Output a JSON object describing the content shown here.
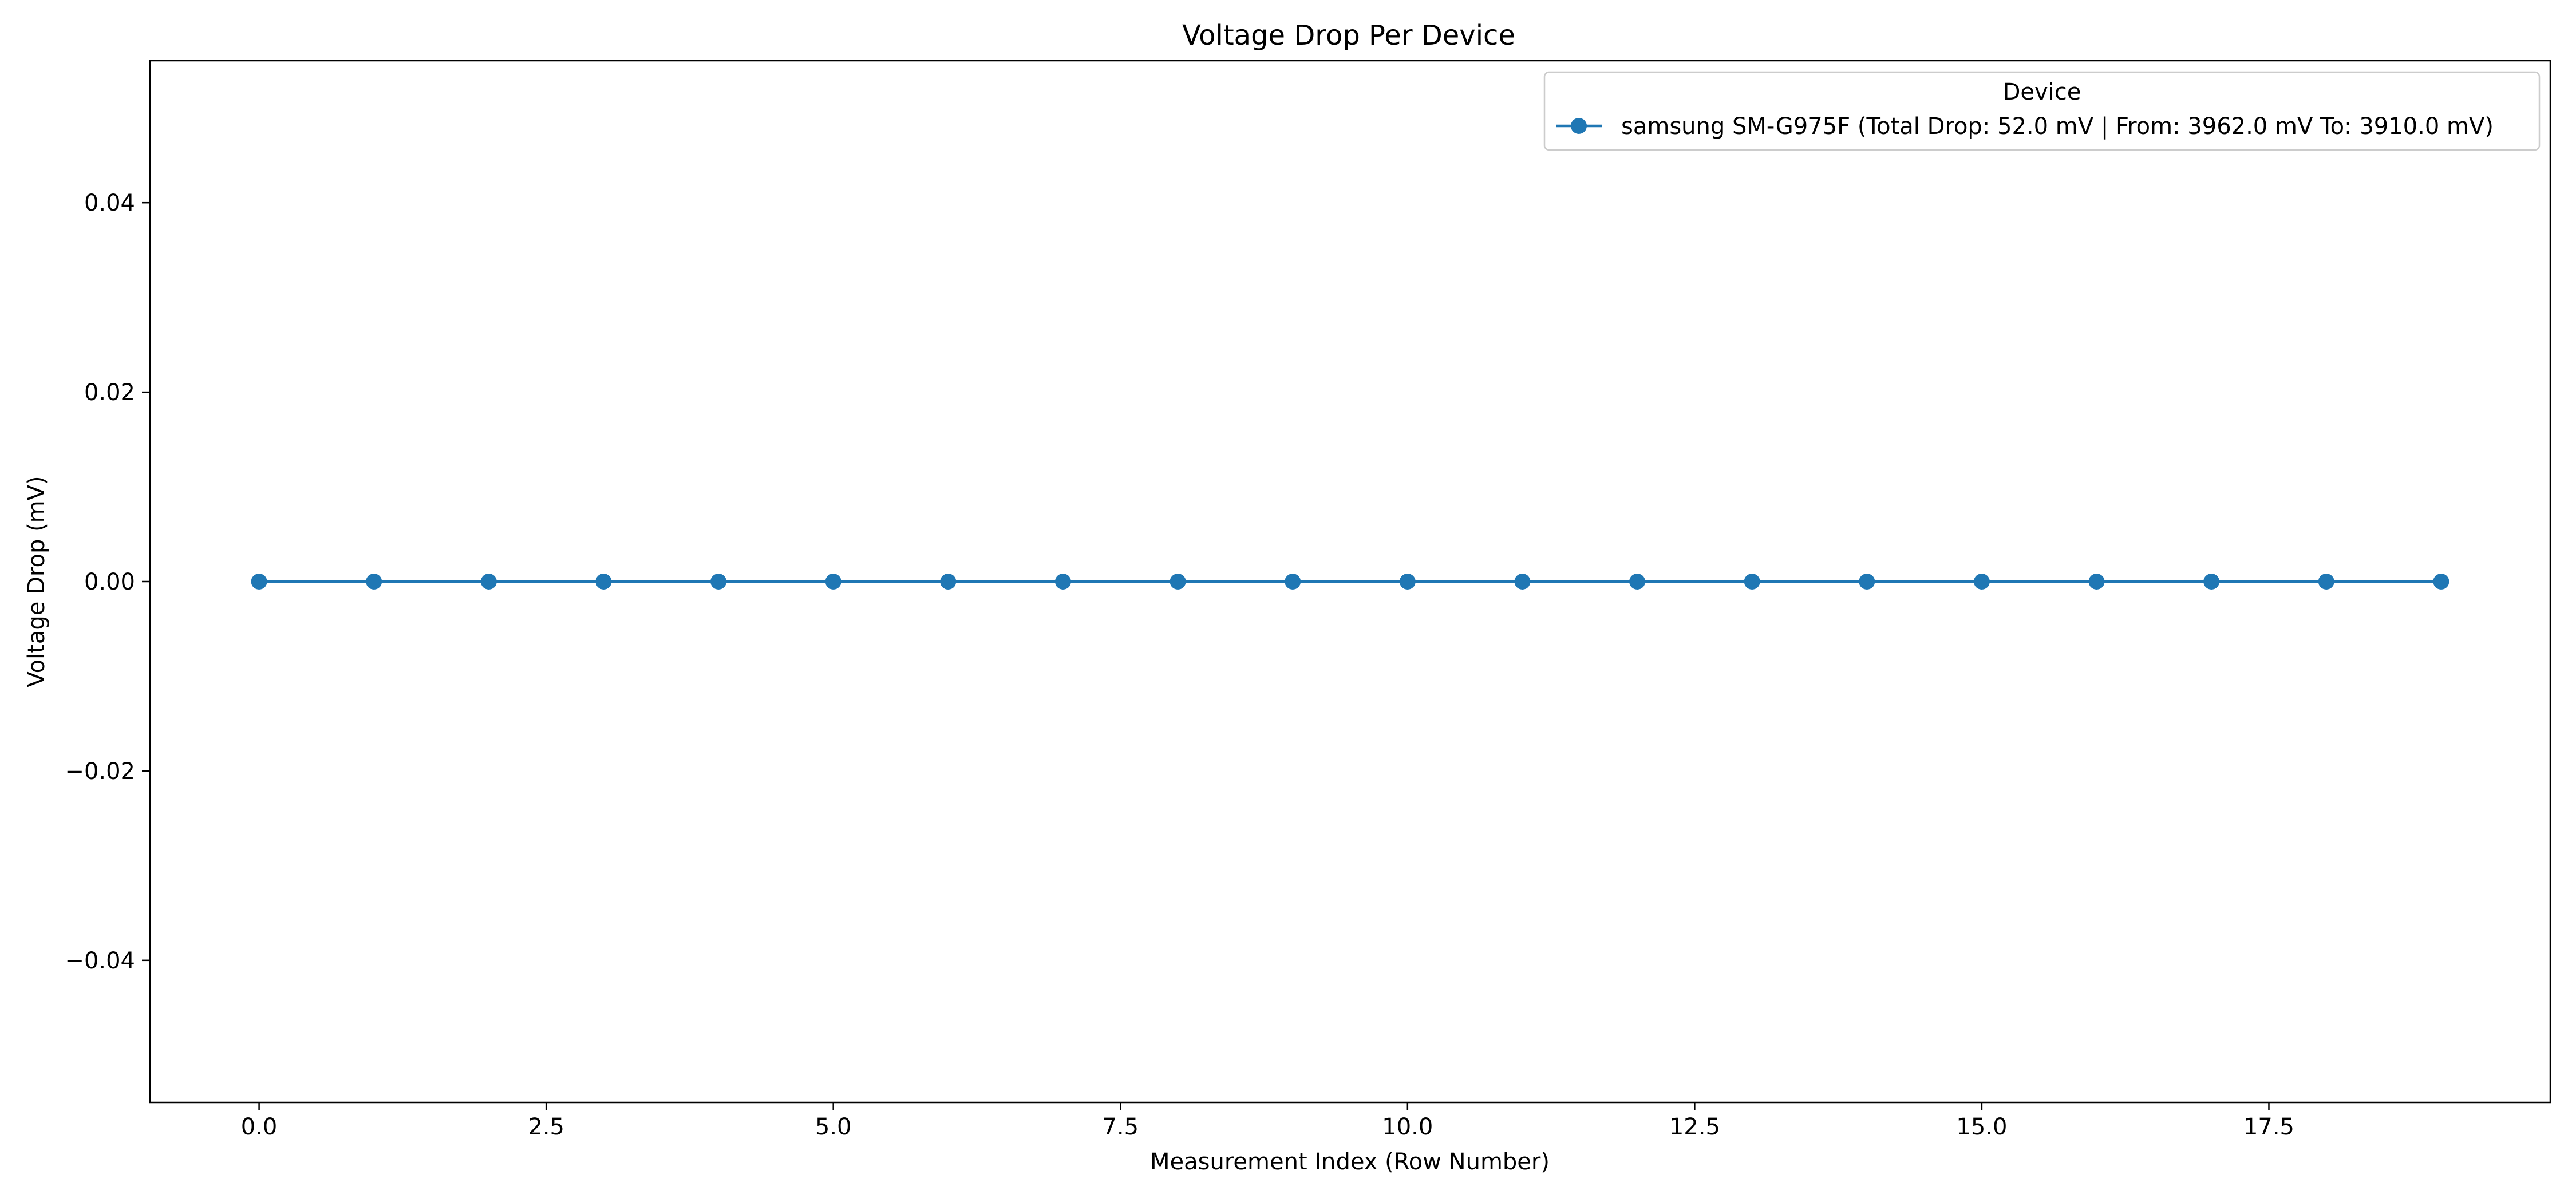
{
  "chart_data": {
    "type": "line",
    "title": "Voltage Drop Per Device",
    "xlabel": "Measurement Index (Row Number)",
    "ylabel": "Voltage Drop (mV)",
    "xlim": [
      -0.95,
      19.95
    ],
    "ylim": [
      -0.055,
      0.055
    ],
    "xticks": [
      0.0,
      2.5,
      5.0,
      7.5,
      10.0,
      12.5,
      15.0,
      17.5
    ],
    "xtick_labels": [
      "0.0",
      "2.5",
      "5.0",
      "7.5",
      "10.0",
      "12.5",
      "15.0",
      "17.5"
    ],
    "yticks": [
      -0.04,
      -0.02,
      0.0,
      0.02,
      0.04
    ],
    "ytick_labels": [
      "−0.04",
      "−0.02",
      "0.00",
      "0.02",
      "0.04"
    ],
    "grid": false,
    "legend": {
      "title": "Device",
      "placement": "top-right"
    },
    "series": [
      {
        "name": "samsung SM-G975F (Total Drop: 52.0 mV | From: 3962.0 mV To: 3910.0 mV)",
        "color": "#1f77b4",
        "marker": "circle",
        "x": [
          0,
          1,
          2,
          3,
          4,
          5,
          6,
          7,
          8,
          9,
          10,
          11,
          12,
          13,
          14,
          15,
          16,
          17,
          18,
          19
        ],
        "y": [
          0,
          0,
          0,
          0,
          0,
          0,
          0,
          0,
          0,
          0,
          0,
          0,
          0,
          0,
          0,
          0,
          0,
          0,
          0,
          0
        ]
      }
    ]
  }
}
